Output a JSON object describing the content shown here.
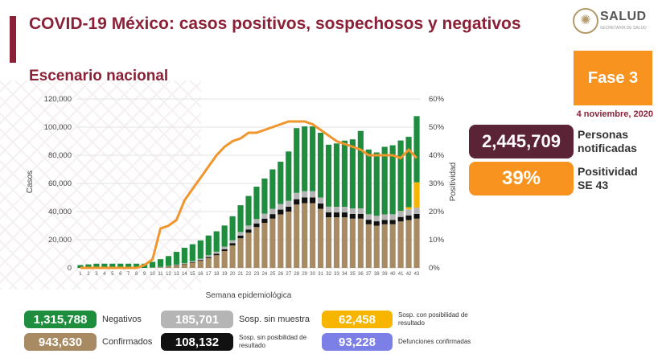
{
  "header": {
    "title": "COVID-19 México: casos positivos, sospechosos y negativos",
    "subtitle": "Escenario nacional",
    "logo_text": "SALUD",
    "logo_sub": "SECRETARÍA DE SALUD"
  },
  "fase": {
    "label": "Fase 3",
    "date": "4 noviembre, 2020"
  },
  "stats": {
    "notificadas": {
      "value": "2,445,709",
      "label": "Personas notificadas"
    },
    "positividad": {
      "value": "39%",
      "label": "Positividad SE 43"
    }
  },
  "legend": [
    {
      "value": "1,315,788",
      "label": "Negativos",
      "color": "#1e8e3e"
    },
    {
      "value": "185,701",
      "label": "Sosp. sin muestra",
      "color": "#b5b5b5"
    },
    {
      "value": "62,458",
      "label": "Sosp. con posibilidad de resultado",
      "color": "#f7b500"
    },
    {
      "value": "943,630",
      "label": "Confirmados",
      "color": "#a88b62"
    },
    {
      "value": "108,132",
      "label": "Sosp. sin posibilidad de resultado",
      "color": "#111111"
    },
    {
      "value": "93,228",
      "label": "Defunciones confirmadas",
      "color": "#7b7fe6"
    }
  ],
  "chart_data": {
    "type": "bar",
    "stacked": true,
    "xlabel": "Semana epidemiológica",
    "ylabel": "Casos",
    "y2label": "Positividad",
    "ylim": [
      0,
      120000
    ],
    "y2lim": [
      0,
      60
    ],
    "yticks": [
      "0",
      "20,000",
      "40,000",
      "60,000",
      "80,000",
      "100,000",
      "120,000"
    ],
    "y2ticks": [
      "0%",
      "10%",
      "20%",
      "30%",
      "40%",
      "50%",
      "60%"
    ],
    "categories": [
      "1",
      "2",
      "3",
      "4",
      "5",
      "6",
      "7",
      "8",
      "9",
      "10",
      "11",
      "12",
      "13",
      "14",
      "15",
      "16",
      "17",
      "18",
      "19",
      "20",
      "21",
      "22",
      "23",
      "24",
      "25",
      "26",
      "27",
      "28",
      "29",
      "30",
      "31",
      "32",
      "33",
      "34",
      "35",
      "36",
      "37",
      "38",
      "39",
      "40",
      "41",
      "42",
      "43"
    ],
    "series": [
      {
        "name": "Confirmados",
        "color": "#a88b62",
        "values": [
          0,
          0,
          0,
          0,
          0,
          0,
          0,
          0,
          0,
          200,
          500,
          1000,
          1800,
          2500,
          3700,
          5000,
          7000,
          9000,
          12000,
          16000,
          21000,
          25000,
          29000,
          32000,
          35000,
          38000,
          40000,
          45000,
          46000,
          46000,
          42000,
          36000,
          36000,
          36000,
          35000,
          35000,
          31000,
          30000,
          31000,
          31000,
          33000,
          34000,
          35000
        ]
      },
      {
        "name": "Sosp. sin posibilidad de resultado",
        "color": "#111111",
        "values": [
          0,
          0,
          0,
          0,
          0,
          0,
          0,
          0,
          0,
          0,
          0,
          100,
          200,
          300,
          400,
          600,
          800,
          1000,
          1300,
          1600,
          2000,
          2300,
          2600,
          3000,
          3200,
          3400,
          3500,
          3800,
          4000,
          4000,
          3800,
          3500,
          3400,
          3400,
          3300,
          3300,
          3200,
          3100,
          3000,
          3100,
          3200,
          3300,
          3300
        ]
      },
      {
        "name": "Sosp. sin muestra",
        "color": "#b5b5b5",
        "values": [
          0,
          0,
          0,
          0,
          0,
          0,
          0,
          0,
          0,
          100,
          200,
          300,
          400,
          500,
          700,
          900,
          1200,
          1500,
          1800,
          2100,
          2500,
          2800,
          3100,
          3500,
          3800,
          4000,
          4200,
          4500,
          4500,
          4500,
          4200,
          4000,
          4000,
          4000,
          4000,
          4000,
          3900,
          3900,
          4000,
          4000,
          4100,
          4300,
          4500
        ]
      },
      {
        "name": "Sosp. con posibilidad de resultado",
        "color": "#f7b500",
        "values": [
          0,
          0,
          0,
          0,
          0,
          0,
          0,
          0,
          0,
          0,
          0,
          0,
          0,
          0,
          0,
          0,
          0,
          0,
          0,
          0,
          0,
          0,
          0,
          0,
          0,
          0,
          0,
          0,
          0,
          0,
          0,
          0,
          0,
          0,
          0,
          0,
          0,
          0,
          0,
          0,
          200,
          1500,
          18000
        ]
      },
      {
        "name": "Negativos",
        "color": "#1e8e3e",
        "values": [
          2000,
          2500,
          3000,
          3000,
          3000,
          3000,
          3000,
          3000,
          3000,
          4000,
          5500,
          7000,
          9000,
          11000,
          12000,
          13000,
          14000,
          14500,
          15000,
          17000,
          19000,
          21000,
          23000,
          25000,
          28000,
          30000,
          35000,
          46000,
          46000,
          46000,
          46000,
          44000,
          45000,
          47000,
          49000,
          55000,
          46000,
          45000,
          48000,
          49000,
          50000,
          50000,
          47000
        ]
      }
    ],
    "positividad": [
      0,
      0,
      0,
      0,
      0,
      0,
      0,
      0,
      1,
      3,
      14,
      15,
      17,
      24,
      28,
      32,
      36,
      40,
      43,
      45,
      46,
      48,
      48,
      49,
      50,
      51,
      52,
      52,
      52,
      51,
      49,
      47,
      45,
      44,
      43,
      42,
      40,
      40,
      40,
      40,
      39,
      42,
      39
    ],
    "positividad_color": "#f0962d"
  }
}
